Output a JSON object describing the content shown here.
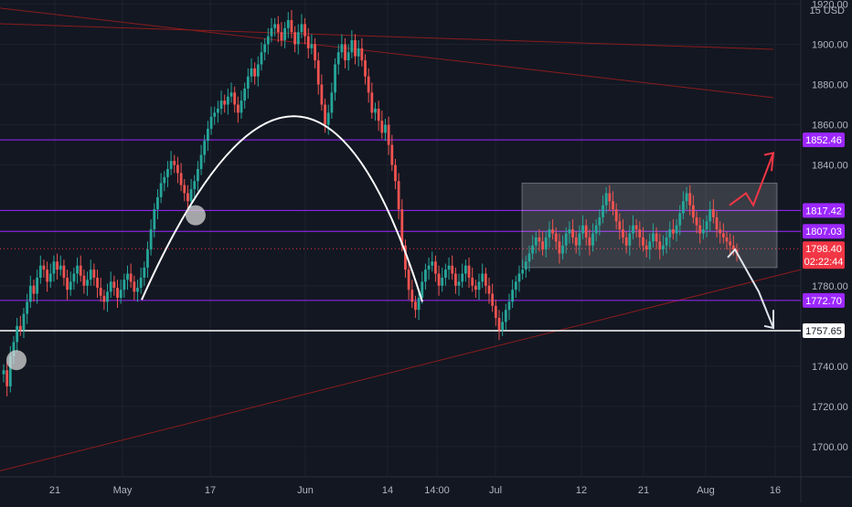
{
  "chart_data": {
    "type": "candlestick",
    "currency": "USD",
    "symbol_fragment": "15",
    "price_axis": {
      "ylim": [
        1685,
        1922
      ],
      "ticks": [
        "1920.00",
        "1900.00",
        "1880.00",
        "1860.00",
        "1840.00",
        "1780.00",
        "1740.00",
        "1720.00",
        "1700.00"
      ]
    },
    "time_axis": {
      "ticks": [
        "21",
        "May",
        "17",
        "Jun",
        "14",
        "14:00",
        "Jul",
        "12",
        "21",
        "Aug",
        "16"
      ]
    },
    "horizontal_levels": [
      {
        "value": 1852.46,
        "label": "1852.46",
        "color": "#9c27ff"
      },
      {
        "value": 1817.42,
        "label": "1817.42",
        "color": "#9c27ff"
      },
      {
        "value": 1807.03,
        "label": "1807.03",
        "color": "#9c27ff"
      },
      {
        "value": 1772.7,
        "label": "1772.70",
        "color": "#9c27ff"
      },
      {
        "value": 1757.65,
        "label": "1757.65",
        "color": "#ffffff"
      }
    ],
    "current_price": {
      "value": 1798.4,
      "label": "1798.40",
      "countdown": "02:22:44",
      "color": "#f23645"
    },
    "colors": {
      "up": "#26a69a",
      "down": "#ef5350",
      "background": "#131722",
      "grid": "#1e222d"
    },
    "trendlines": [
      "descending-upper",
      "descending-lower",
      "ascending-support"
    ],
    "annotations": [
      "rounded-top-arc",
      "consolidation-range-box",
      "breakout-up-arrow",
      "breakdown-down-arrow",
      "circle-marker",
      "circle-marker"
    ],
    "series": [
      {
        "close": [
          1738,
          1730,
          1745,
          1752,
          1760,
          1758,
          1766,
          1772,
          1780,
          1776,
          1784,
          1790,
          1788,
          1782,
          1786,
          1792,
          1788,
          1790,
          1784,
          1778,
          1782,
          1786,
          1790,
          1785,
          1780,
          1783,
          1788,
          1784,
          1779,
          1775,
          1772,
          1777,
          1782,
          1779,
          1774,
          1778,
          1783,
          1786,
          1782,
          1777,
          1779,
          1784,
          1789,
          1798,
          1808,
          1818,
          1824,
          1831,
          1834,
          1838,
          1842,
          1840,
          1836,
          1830,
          1826,
          1822,
          1828,
          1832,
          1838,
          1845,
          1852,
          1858,
          1864,
          1866,
          1868,
          1872,
          1870,
          1874,
          1876,
          1870,
          1866,
          1872,
          1878,
          1884,
          1888,
          1884,
          1890,
          1896,
          1900,
          1904,
          1908,
          1910,
          1906,
          1902,
          1908,
          1912,
          1906,
          1900,
          1906,
          1910,
          1904,
          1898,
          1900,
          1892,
          1880,
          1870,
          1860,
          1866,
          1876,
          1890,
          1896,
          1900,
          1892,
          1896,
          1902,
          1894,
          1898,
          1892,
          1884,
          1876,
          1866,
          1868,
          1862,
          1856,
          1860,
          1850,
          1840,
          1832,
          1818,
          1800,
          1788,
          1778,
          1772,
          1768,
          1774,
          1782,
          1788,
          1790,
          1792,
          1786,
          1780,
          1784,
          1788,
          1790,
          1786,
          1780,
          1782,
          1786,
          1790,
          1784,
          1780,
          1778,
          1782,
          1786,
          1780,
          1776,
          1770,
          1764,
          1758,
          1762,
          1768,
          1772,
          1778,
          1782,
          1786,
          1788,
          1792,
          1796,
          1800,
          1804,
          1802,
          1798,
          1804,
          1808,
          1806,
          1802,
          1796,
          1800,
          1806,
          1808,
          1804,
          1800,
          1806,
          1810,
          1804,
          1800,
          1806,
          1810,
          1814,
          1820,
          1826,
          1822,
          1818,
          1812,
          1808,
          1804,
          1800,
          1806,
          1810,
          1808,
          1804,
          1800,
          1798,
          1802,
          1806,
          1802,
          1798,
          1800,
          1804,
          1808,
          1806,
          1810,
          1816,
          1822,
          1826,
          1820,
          1814,
          1810,
          1806,
          1808,
          1812,
          1818,
          1814,
          1808,
          1806,
          1804,
          1802,
          1800,
          1798,
          1796
        ]
      }
    ]
  }
}
